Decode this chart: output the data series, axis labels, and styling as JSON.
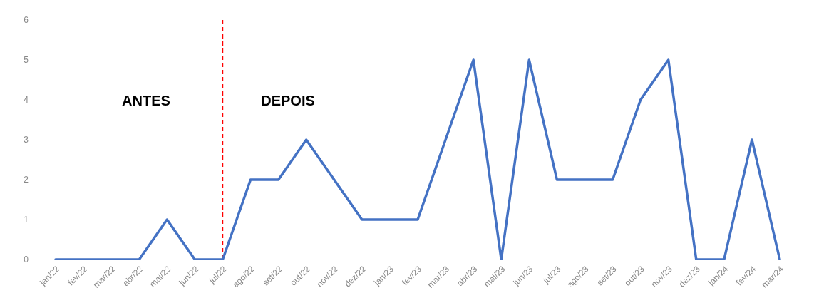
{
  "chart_data": {
    "type": "line",
    "categories": [
      "jan/22",
      "fev/22",
      "mar/22",
      "abr/22",
      "mai/22",
      "jun/22",
      "jul/22",
      "ago/22",
      "set/22",
      "out/22",
      "nov/22",
      "dez/22",
      "jan/23",
      "fev/23",
      "mar/23",
      "abr/23",
      "mai/23",
      "jun/23",
      "jul/23",
      "ago/23",
      "set/23",
      "out/23",
      "nov/23",
      "dez/23",
      "jan/24",
      "fev/24",
      "mar/24"
    ],
    "series": [
      {
        "color": "#4472c4",
        "values": [
          0,
          0,
          0,
          0,
          1,
          0,
          0,
          2,
          2,
          3,
          2,
          1,
          1,
          1,
          3,
          5,
          0,
          5,
          2,
          2,
          2,
          4,
          5,
          0,
          0,
          3,
          0
        ]
      }
    ],
    "ylim": [
      0,
      6
    ],
    "yticks": [
      0,
      1,
      2,
      3,
      4,
      5,
      6
    ],
    "grid": false,
    "legend": false,
    "marker": "none",
    "line_style": "solid",
    "ref_lines": [
      {
        "axis": "x",
        "value": "jul/22",
        "color": "#ff0000",
        "line_style": "dashed"
      }
    ],
    "annotations": [
      "ANTES",
      "DEPOIS"
    ]
  }
}
